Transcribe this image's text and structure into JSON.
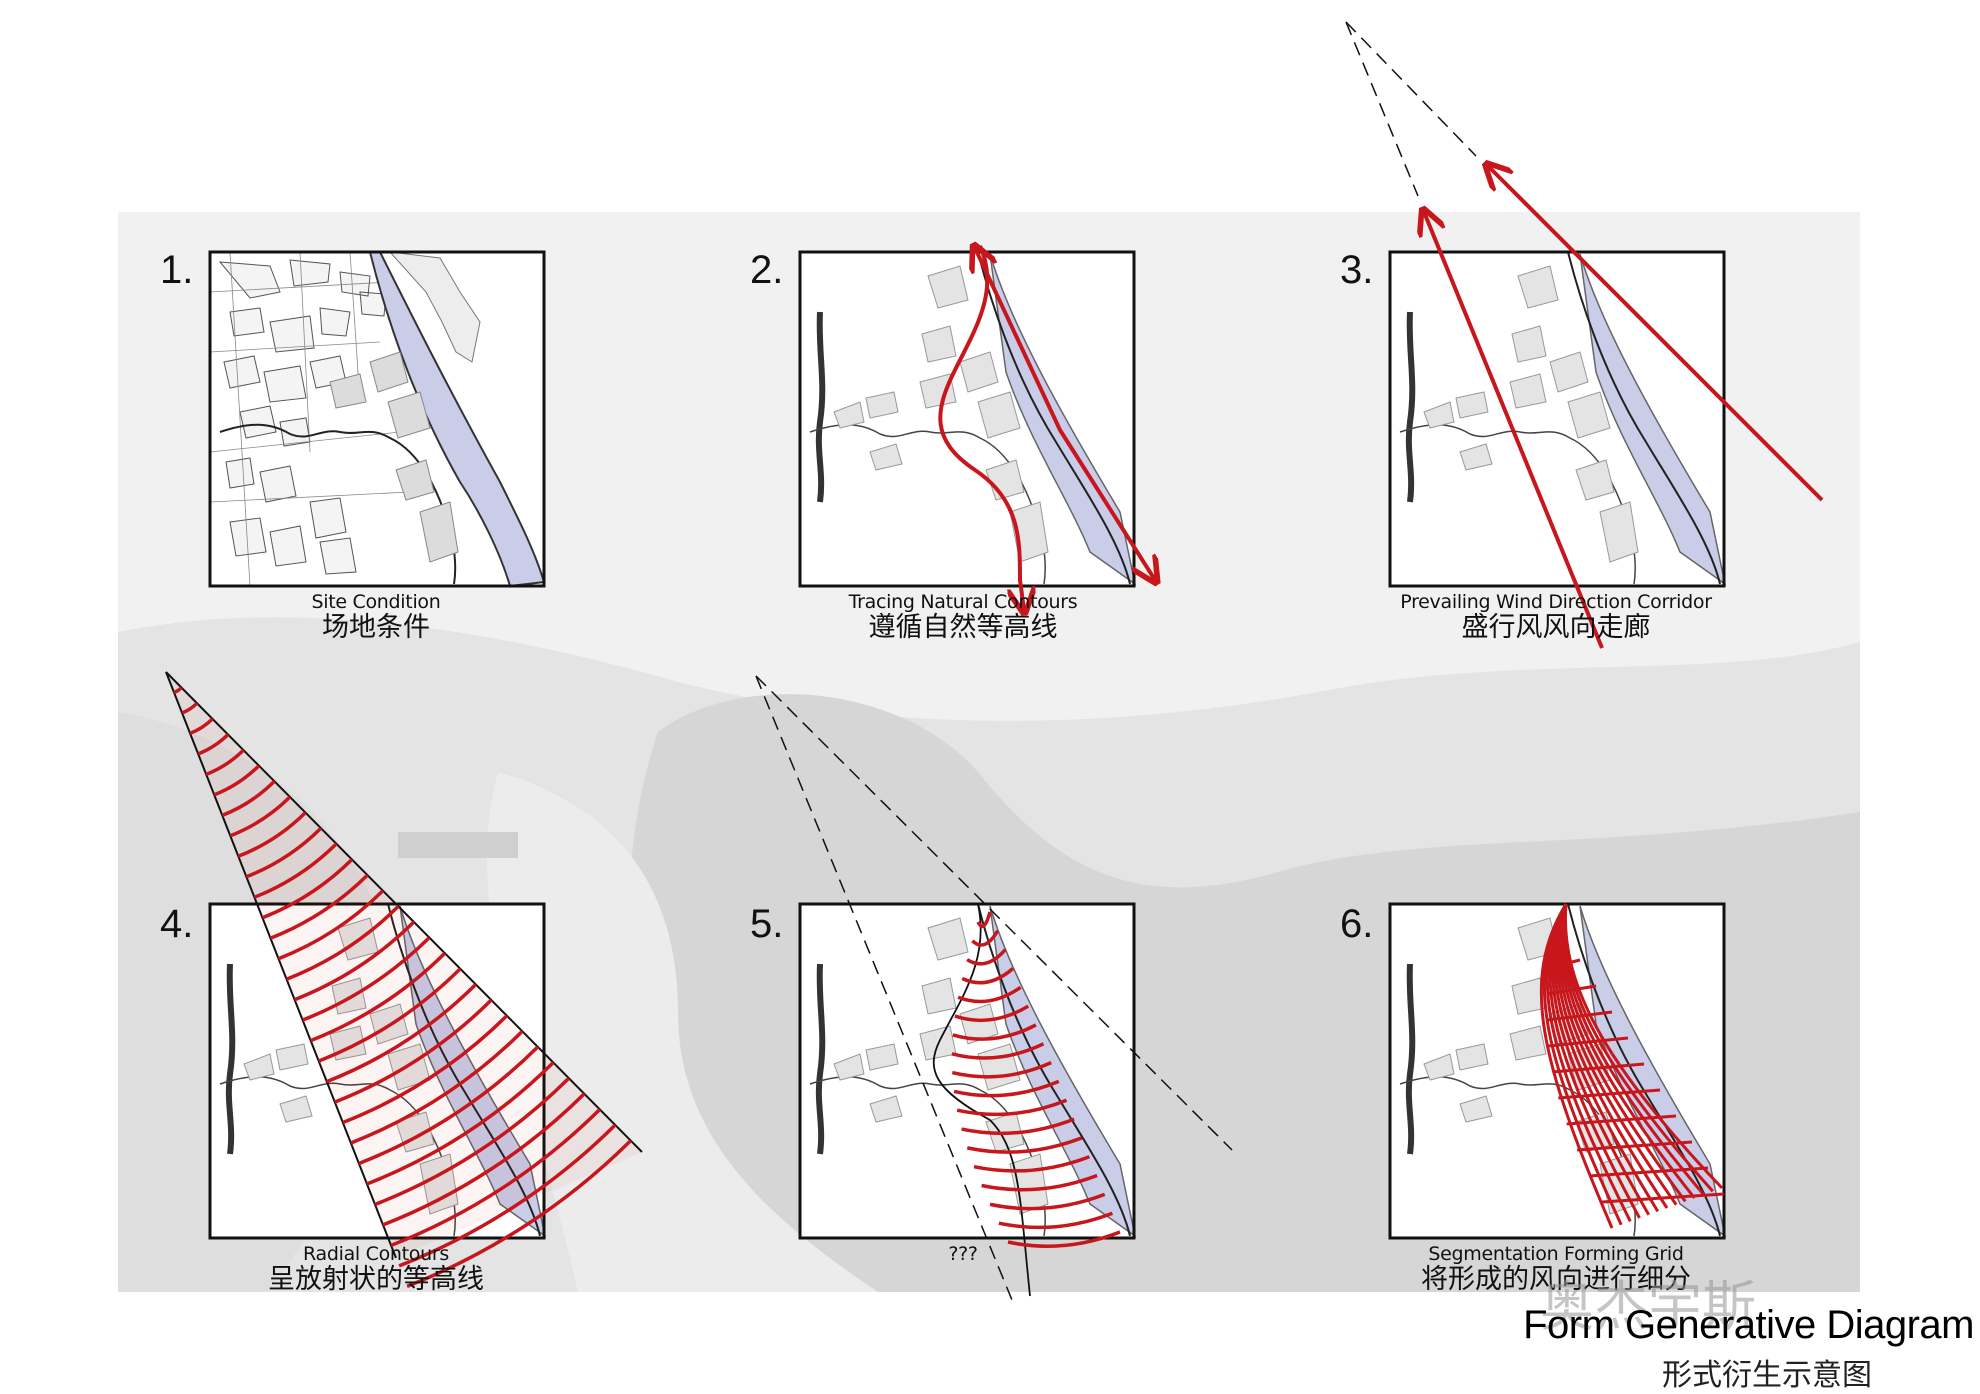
{
  "panels": [
    {
      "number": "1.",
      "caption_en": "Site Condition",
      "caption_zh": "场地条件"
    },
    {
      "number": "2.",
      "caption_en": "Tracing Natural Contours",
      "caption_zh": "遵循自然等高线"
    },
    {
      "number": "3.",
      "caption_en": "Prevailing Wind Direction Corridor",
      "caption_zh": "盛行风风向走廊"
    },
    {
      "number": "4.",
      "caption_en": "Radial Contours",
      "caption_zh": "呈放射状的等高线"
    },
    {
      "number": "5.",
      "caption_en": "???",
      "caption_zh": ""
    },
    {
      "number": "6.",
      "caption_en": "Segmentation Forming Grid",
      "caption_zh": "将形成的风向进行细分"
    }
  ],
  "title": "Form Generative Diagram",
  "subtitle": "形式衍生示意图",
  "watermark": "奥杰宇斯",
  "colors": {
    "accent_red": "#c8161d",
    "river_blue": "#c9cde8",
    "frame": "#111111",
    "background_photo": "#e8e8e8"
  }
}
